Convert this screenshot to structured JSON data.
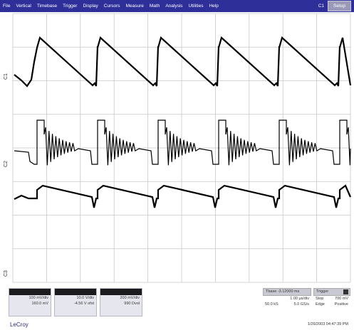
{
  "menu": {
    "items": [
      "File",
      "Vertical",
      "Timebase",
      "Trigger",
      "Display",
      "Cursors",
      "Measure",
      "Math",
      "Analysis",
      "Utilities",
      "Help"
    ],
    "right_label": "C1",
    "setup_label": "Setup"
  },
  "channels": {
    "labels": [
      "C1",
      "C2",
      "C3"
    ]
  },
  "channel_boxes": [
    {
      "line1": "100 mV/div",
      "line2": "160.0 mV"
    },
    {
      "line1": "10.0 V/div",
      "line2": "-4.56 V ofst"
    },
    {
      "line1": "200 mV/div",
      "line2": "990 Dvol"
    }
  ],
  "timebase": {
    "header": "Tbase -3.12000 ms",
    "row1_left": "1.00 μs/div",
    "row2_left": "50.0 kS",
    "row2_right": "5.0 GS/s"
  },
  "trigger": {
    "header": "Trigger",
    "row1_left": "Stop",
    "row1_right": "700 mV",
    "row2_left": "Edge",
    "row2_right": "Positive"
  },
  "logo": "LeCroy",
  "timestamp": "1/26/2003 04:47:39 PM",
  "colors": {
    "menu_bg": "#2f2f9a",
    "grid": "#c8c8c8",
    "trace": "#000000"
  }
}
